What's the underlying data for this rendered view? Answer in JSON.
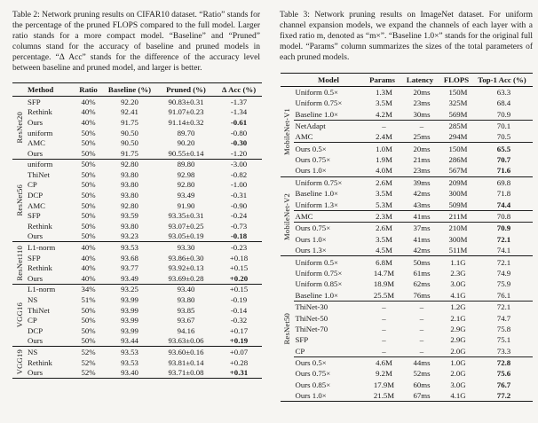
{
  "table2": {
    "caption": "Table 2: Network pruning results on CIFAR10 dataset. “Ratio” stands for the percentage of the pruned FLOPS compared to the full model. Larger ratio stands for a more compact model. “Baseline” and “Pruned” columns stand for the accuracy of baseline and pruned models in percentage. “Δ Acc” stands for the difference of the accuracy level between baseline and pruned model, and larger is better.",
    "headers": [
      "Method",
      "Ratio",
      "Baseline (%)",
      "Pruned (%)",
      "Δ Acc (%)"
    ],
    "groups": [
      {
        "label": "ResNet20",
        "subgroups": [
          {
            "rows": [
              {
                "cells": [
                  "SFP",
                  "40%",
                  "92.20",
                  "90.83±0.31",
                  "-1.37"
                ]
              },
              {
                "cells": [
                  "Rethink",
                  "40%",
                  "92.41",
                  "91.07±0.23",
                  "-1.34"
                ]
              },
              {
                "cells": [
                  "Ours",
                  "40%",
                  "91.75",
                  "91.14±0.32",
                  "-0.61"
                ],
                "bold_last": true
              },
              {
                "cells": [
                  "uniform",
                  "50%",
                  "90.50",
                  "89.70",
                  "-0.80"
                ]
              },
              {
                "cells": [
                  "AMC",
                  "50%",
                  "90.50",
                  "90.20",
                  "-0.30"
                ],
                "bold_last": true
              },
              {
                "cells": [
                  "Ours",
                  "50%",
                  "91.75",
                  "90.55±0.14",
                  "-1.20"
                ]
              }
            ]
          }
        ]
      },
      {
        "label": "ResNet56",
        "subgroups": [
          {
            "rows": [
              {
                "cells": [
                  "uniform",
                  "50%",
                  "92.80",
                  "89.80",
                  "-3.00"
                ]
              },
              {
                "cells": [
                  "ThiNet",
                  "50%",
                  "93.80",
                  "92.98",
                  "-0.82"
                ]
              },
              {
                "cells": [
                  "CP",
                  "50%",
                  "93.80",
                  "92.80",
                  "-1.00"
                ]
              },
              {
                "cells": [
                  "DCP",
                  "50%",
                  "93.80",
                  "93.49",
                  "-0.31"
                ]
              },
              {
                "cells": [
                  "AMC",
                  "50%",
                  "92.80",
                  "91.90",
                  "-0.90"
                ]
              },
              {
                "cells": [
                  "SFP",
                  "50%",
                  "93.59",
                  "93.35±0.31",
                  "-0.24"
                ]
              },
              {
                "cells": [
                  "Rethink",
                  "50%",
                  "93.80",
                  "93.07±0.25",
                  "-0.73"
                ]
              },
              {
                "cells": [
                  "Ours",
                  "50%",
                  "93.23",
                  "93.05±0.19",
                  "-0.18"
                ],
                "bold_last": true
              }
            ]
          }
        ]
      },
      {
        "label": "ResNet110",
        "subgroups": [
          {
            "rows": [
              {
                "cells": [
                  "L1-norm",
                  "40%",
                  "93.53",
                  "93.30",
                  "-0.23"
                ]
              },
              {
                "cells": [
                  "SFP",
                  "40%",
                  "93.68",
                  "93.86±0.30",
                  "+0.18"
                ]
              },
              {
                "cells": [
                  "Rethink",
                  "40%",
                  "93.77",
                  "93.92±0.13",
                  "+0.15"
                ]
              },
              {
                "cells": [
                  "Ours",
                  "40%",
                  "93.49",
                  "93.69±0.28",
                  "+0.20"
                ],
                "bold_last": true
              }
            ]
          }
        ]
      },
      {
        "label": "VGG16",
        "subgroups": [
          {
            "rows": [
              {
                "cells": [
                  "L1-norm",
                  "34%",
                  "93.25",
                  "93.40",
                  "+0.15"
                ]
              },
              {
                "cells": [
                  "NS",
                  "51%",
                  "93.99",
                  "93.80",
                  "-0.19"
                ]
              },
              {
                "cells": [
                  "ThiNet",
                  "50%",
                  "93.99",
                  "93.85",
                  "-0.14"
                ]
              },
              {
                "cells": [
                  "CP",
                  "50%",
                  "93.99",
                  "93.67",
                  "-0.32"
                ]
              },
              {
                "cells": [
                  "DCP",
                  "50%",
                  "93.99",
                  "94.16",
                  "+0.17"
                ]
              },
              {
                "cells": [
                  "Ours",
                  "50%",
                  "93.44",
                  "93.63±0.06",
                  "+0.19"
                ],
                "bold_last": true
              }
            ]
          }
        ]
      },
      {
        "label": "VGG19",
        "subgroups": [
          {
            "rows": [
              {
                "cells": [
                  "NS",
                  "52%",
                  "93.53",
                  "93.60±0.16",
                  "+0.07"
                ]
              },
              {
                "cells": [
                  "Rethink",
                  "52%",
                  "93.53",
                  "93.81±0.14",
                  "+0.28"
                ]
              },
              {
                "cells": [
                  "Ours",
                  "52%",
                  "93.40",
                  "93.71±0.08",
                  "+0.31"
                ],
                "bold_last": true
              }
            ]
          }
        ]
      }
    ]
  },
  "table3": {
    "caption": "Table 3: Network pruning results on ImageNet dataset. For uniform channel expansion models, we expand the channels of each layer with a fixed ratio m, denoted as “m×”. “Baseline 1.0×” stands for the original full model. “Params” column summarizes the sizes of the total parameters of each pruned models.",
    "headers": [
      "Model",
      "Params",
      "Latency",
      "FLOPS",
      "Top-1 Acc (%)"
    ],
    "groups": [
      {
        "label": "MobileNet-V1",
        "subgroups": [
          {
            "rows": [
              {
                "cells": [
                  "Uniform 0.5×",
                  "1.3M",
                  "20ms",
                  "150M",
                  "63.3"
                ]
              },
              {
                "cells": [
                  "Uniform 0.75×",
                  "3.5M",
                  "23ms",
                  "325M",
                  "68.4"
                ]
              },
              {
                "cells": [
                  "Baseline 1.0×",
                  "4.2M",
                  "30ms",
                  "569M",
                  "70.9"
                ]
              }
            ]
          },
          {
            "rows": [
              {
                "cells": [
                  "NetAdapt",
                  "–",
                  "–",
                  "285M",
                  "70.1"
                ]
              },
              {
                "cells": [
                  "AMC",
                  "2.4M",
                  "25ms",
                  "294M",
                  "70.5"
                ]
              }
            ]
          },
          {
            "rows": [
              {
                "cells": [
                  "Ours 0.5×",
                  "1.0M",
                  "20ms",
                  "150M",
                  "65.5"
                ],
                "bold_last": true
              },
              {
                "cells": [
                  "Ours 0.75×",
                  "1.9M",
                  "21ms",
                  "286M",
                  "70.7"
                ],
                "bold_last": true
              },
              {
                "cells": [
                  "Ours 1.0×",
                  "4.0M",
                  "23ms",
                  "567M",
                  "71.6"
                ],
                "bold_last": true
              }
            ]
          }
        ]
      },
      {
        "label": "MobileNet-V2",
        "subgroups": [
          {
            "rows": [
              {
                "cells": [
                  "Uniform 0.75×",
                  "2.6M",
                  "39ms",
                  "209M",
                  "69.8"
                ]
              },
              {
                "cells": [
                  "Baseline 1.0×",
                  "3.5M",
                  "42ms",
                  "300M",
                  "71.8"
                ]
              },
              {
                "cells": [
                  "Uniform 1.3×",
                  "5.3M",
                  "43ms",
                  "509M",
                  "74.4"
                ],
                "bold_last": true
              }
            ]
          },
          {
            "rows": [
              {
                "cells": [
                  "AMC",
                  "2.3M",
                  "41ms",
                  "211M",
                  "70.8"
                ]
              }
            ]
          },
          {
            "rows": [
              {
                "cells": [
                  "Ours 0.75×",
                  "2.6M",
                  "37ms",
                  "210M",
                  "70.9"
                ],
                "bold_last": true
              },
              {
                "cells": [
                  "Ours 1.0×",
                  "3.5M",
                  "41ms",
                  "300M",
                  "72.1"
                ],
                "bold_last": true
              },
              {
                "cells": [
                  "Ours 1.3×",
                  "4.5M",
                  "42ms",
                  "511M",
                  "74.1"
                ]
              }
            ]
          }
        ]
      },
      {
        "label": "ResNet50",
        "subgroups": [
          {
            "rows": [
              {
                "cells": [
                  "Uniform 0.5×",
                  "6.8M",
                  "50ms",
                  "1.1G",
                  "72.1"
                ]
              },
              {
                "cells": [
                  "Uniform 0.75×",
                  "14.7M",
                  "61ms",
                  "2.3G",
                  "74.9"
                ]
              },
              {
                "cells": [
                  "Uniform 0.85×",
                  "18.9M",
                  "62ms",
                  "3.0G",
                  "75.9"
                ]
              },
              {
                "cells": [
                  "Baseline 1.0×",
                  "25.5M",
                  "76ms",
                  "4.1G",
                  "76.1"
                ]
              }
            ]
          },
          {
            "rows": [
              {
                "cells": [
                  "ThiNet-30",
                  "–",
                  "–",
                  "1.2G",
                  "72.1"
                ]
              },
              {
                "cells": [
                  "ThiNet-50",
                  "–",
                  "–",
                  "2.1G",
                  "74.7"
                ]
              },
              {
                "cells": [
                  "ThiNet-70",
                  "–",
                  "–",
                  "2.9G",
                  "75.8"
                ]
              },
              {
                "cells": [
                  "SFP",
                  "–",
                  "–",
                  "2.9G",
                  "75.1"
                ]
              },
              {
                "cells": [
                  "CP",
                  "–",
                  "–",
                  "2.0G",
                  "73.3"
                ]
              }
            ]
          },
          {
            "rows": [
              {
                "cells": [
                  "Ours 0.5×",
                  "4.6M",
                  "44ms",
                  "1.0G",
                  "72.8"
                ],
                "bold_last": true
              },
              {
                "cells": [
                  "Ours 0.75×",
                  "9.2M",
                  "52ms",
                  "2.0G",
                  "75.6"
                ],
                "bold_last": true
              },
              {
                "cells": [
                  "Ours 0.85×",
                  "17.9M",
                  "60ms",
                  "3.0G",
                  "76.7"
                ],
                "bold_last": true
              },
              {
                "cells": [
                  "Ours 1.0×",
                  "21.5M",
                  "67ms",
                  "4.1G",
                  "77.2"
                ],
                "bold_last": true
              }
            ]
          }
        ]
      }
    ]
  }
}
